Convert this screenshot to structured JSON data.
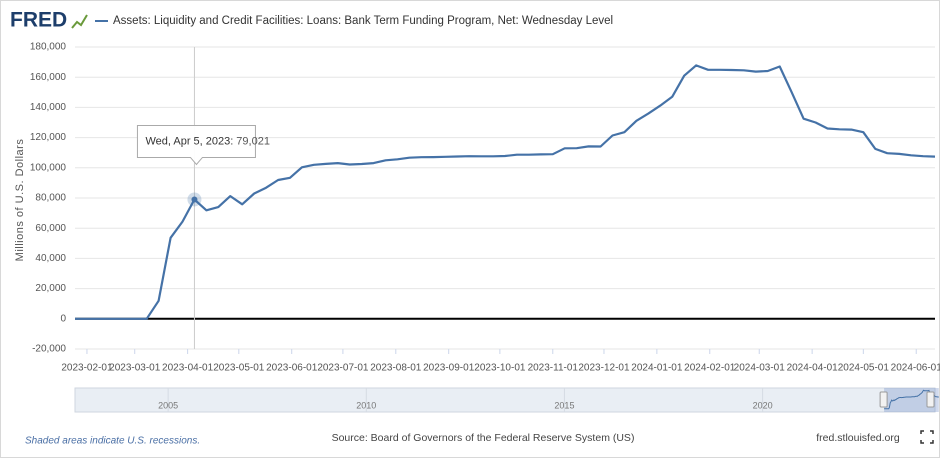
{
  "header": {
    "logo": "FRED"
  },
  "chart_data": {
    "type": "line",
    "y_label": "Millions of U.S. Dollars",
    "x": [
      "2023-01-25",
      "2023-02-01",
      "2023-02-08",
      "2023-02-15",
      "2023-02-22",
      "2023-03-01",
      "2023-03-08",
      "2023-03-15",
      "2023-03-22",
      "2023-03-29",
      "2023-04-05",
      "2023-04-12",
      "2023-04-19",
      "2023-04-26",
      "2023-05-03",
      "2023-05-10",
      "2023-05-17",
      "2023-05-24",
      "2023-05-31",
      "2023-06-07",
      "2023-06-14",
      "2023-06-21",
      "2023-06-28",
      "2023-07-05",
      "2023-07-12",
      "2023-07-19",
      "2023-07-26",
      "2023-08-02",
      "2023-08-09",
      "2023-08-16",
      "2023-08-23",
      "2023-08-30",
      "2023-09-06",
      "2023-09-13",
      "2023-09-20",
      "2023-09-27",
      "2023-10-04",
      "2023-10-11",
      "2023-10-18",
      "2023-10-25",
      "2023-11-01",
      "2023-11-08",
      "2023-11-15",
      "2023-11-22",
      "2023-11-29",
      "2023-12-06",
      "2023-12-13",
      "2023-12-20",
      "2023-12-27",
      "2024-01-03",
      "2024-01-10",
      "2024-01-17",
      "2024-01-24",
      "2024-01-31",
      "2024-02-07",
      "2024-02-14",
      "2024-02-21",
      "2024-02-28",
      "2024-03-06",
      "2024-03-13",
      "2024-03-20",
      "2024-03-27",
      "2024-04-03",
      "2024-04-10",
      "2024-04-17",
      "2024-04-24",
      "2024-05-01",
      "2024-05-08",
      "2024-05-15",
      "2024-05-22",
      "2024-05-29",
      "2024-06-05",
      "2024-06-12"
    ],
    "series": [
      {
        "name": "Assets: Liquidity and Credit Facilities: Loans: Bank Term Funding Program, Net: Wednesday Level",
        "color": "#4572a7",
        "values": [
          0,
          0,
          0,
          0,
          0,
          0,
          0,
          11943,
          53669,
          64403,
          79021,
          71837,
          73978,
          81265,
          75825,
          83000,
          86800,
          91900,
          93400,
          100300,
          102000,
          102600,
          103100,
          102200,
          102500,
          103100,
          105000,
          105600,
          106700,
          107000,
          107100,
          107300,
          107500,
          107700,
          107600,
          107600,
          107800,
          108700,
          108700,
          108900,
          109000,
          112900,
          113000,
          114200,
          114100,
          121400,
          123600,
          131100,
          135900,
          141200,
          147000,
          161000,
          167800,
          164900,
          164900,
          164800,
          164600,
          163700,
          164100,
          167100,
          150000,
          132500,
          130000,
          126000,
          125500,
          125300,
          123600,
          112500,
          109700,
          109200,
          108300,
          107700,
          107400
        ]
      }
    ],
    "xlim": [
      "2023-01-25",
      "2024-06-12"
    ],
    "xticks": [
      "2023-02-01",
      "2023-03-01",
      "2023-04-01",
      "2023-05-01",
      "2023-06-01",
      "2023-07-01",
      "2023-08-01",
      "2023-09-01",
      "2023-10-01",
      "2023-11-01",
      "2023-12-01",
      "2024-01-01",
      "2024-02-01",
      "2024-03-01",
      "2024-04-01",
      "2024-05-01",
      "2024-06-01"
    ],
    "ylim": [
      -20000,
      180000
    ],
    "yticks": [
      {
        "value": -20000,
        "label": "-20,000"
      },
      0,
      {
        "value": 20000,
        "label": "20,000"
      },
      {
        "value": 40000,
        "label": "40,000"
      },
      {
        "value": 60000,
        "label": "60,000"
      },
      {
        "value": 80000,
        "label": "80,000"
      },
      {
        "value": 100000,
        "label": "100,000"
      },
      {
        "value": 120000,
        "label": "120,000"
      },
      {
        "value": 140000,
        "label": "140,000"
      },
      {
        "value": 160000,
        "label": "160,000"
      },
      {
        "value": 180000,
        "label": "180,000"
      }
    ],
    "grid": true,
    "tooltip": {
      "index": 10,
      "date_label": "Wed, Apr 5, 2023:",
      "value_label": "79,021"
    },
    "navigator": {
      "xlim": [
        2002.65,
        2024.35
      ],
      "xticks": [
        2005,
        2010,
        2015,
        2020
      ]
    }
  },
  "footer": {
    "note": "Shaded areas indicate U.S. recessions.",
    "source": "Source: Board of Governors of the Federal Reserve System (US)",
    "site": "fred.stlouisfed.org"
  }
}
